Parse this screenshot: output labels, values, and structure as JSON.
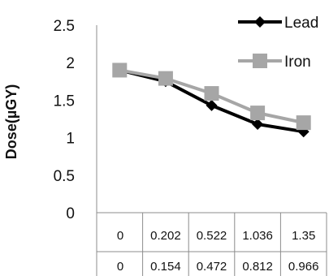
{
  "chart_data": {
    "type": "line",
    "ylabel": "Dose(µGY)",
    "ylim": [
      0,
      2.5
    ],
    "yticks": [
      "2.5",
      "2",
      "1.5",
      "1",
      "0.5",
      "0"
    ],
    "category_rows": [
      [
        "0",
        "0.202",
        "0.522",
        "1.036",
        "1.35"
      ],
      [
        "0",
        "0.154",
        "0.472",
        "0.812",
        "0.966"
      ]
    ],
    "series": [
      {
        "name": "Lead",
        "values": [
          1.9,
          1.75,
          1.43,
          1.18,
          1.08
        ],
        "color": "#000000",
        "marker": "diamond"
      },
      {
        "name": "Iron",
        "values": [
          1.9,
          1.79,
          1.59,
          1.33,
          1.2
        ],
        "color": "#a6a6a6",
        "marker": "square"
      }
    ],
    "grid": false,
    "legend": "top-right"
  }
}
